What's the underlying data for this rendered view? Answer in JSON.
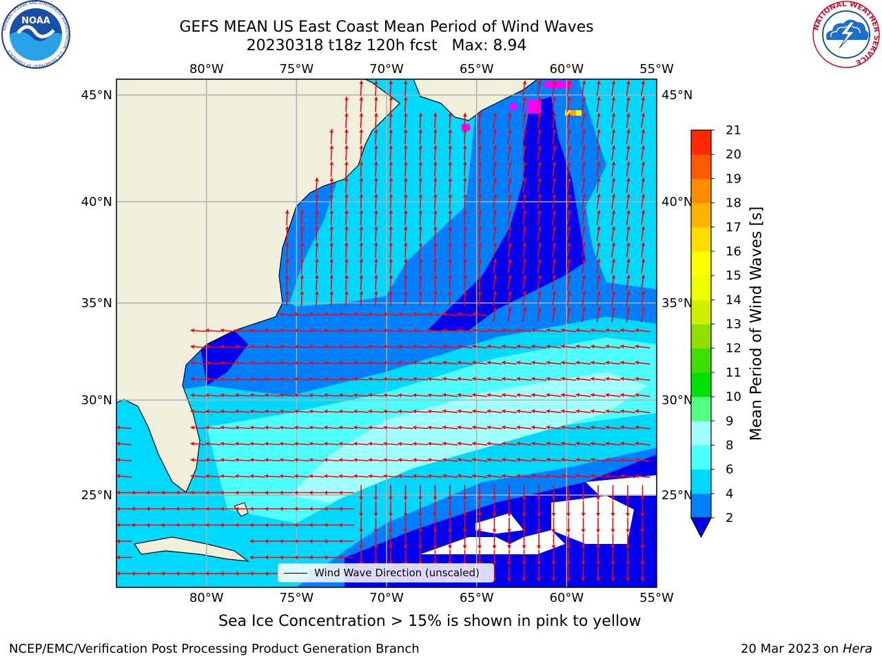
{
  "header": {
    "title_line1": "GEFS MEAN US East Coast Mean Period of Wind Waves",
    "title_line2": "20230318 t18z 120h fcst   Max: 8.94"
  },
  "logos": {
    "left": {
      "icon": "noaa-logo-icon",
      "text": "NOAA",
      "ring_text": "NATIONAL OCEANIC AND ATMOSPHERIC ADMINISTRATION · U.S. DEPARTMENT OF COMMERCE"
    },
    "right": {
      "icon": "nws-logo-icon",
      "ring_text": "NATIONAL WEATHER SERVICE"
    }
  },
  "map": {
    "lon_labels": [
      "80°W",
      "75°W",
      "70°W",
      "65°W",
      "60°W",
      "55°W"
    ],
    "lat_labels": [
      "45°N",
      "40°N",
      "35°N",
      "30°N",
      "25°N"
    ],
    "lon_values": [
      -80,
      -75,
      -70,
      -65,
      -60,
      -55
    ],
    "lat_values": [
      45,
      40,
      35,
      30,
      25
    ],
    "extent": {
      "lon_min": -85,
      "lon_max": -55,
      "lat_min": 20.5,
      "lat_max": 45.8
    },
    "land_color": "#efefdc",
    "arrow_color": "#ff0000",
    "ice_colors": [
      "#ff00ff",
      "#ffff00",
      "#ffa500"
    ]
  },
  "legend": {
    "label": "Wind Wave Direction (unscaled)"
  },
  "colorbar": {
    "label": "Mean Period of Wind Waves [s]",
    "ticks": [
      "2",
      "4",
      "6",
      "8",
      "9",
      "10",
      "11",
      "12",
      "13",
      "14",
      "15",
      "16",
      "17",
      "18",
      "19",
      "20",
      "21"
    ],
    "colors": [
      "#0080ff",
      "#00d9ff",
      "#4dffff",
      "#a0ffff",
      "#55ff80",
      "#00e000",
      "#40dd00",
      "#90dd00",
      "#cfee00",
      "#eeff00",
      "#ffff00",
      "#ffdd00",
      "#ffb300",
      "#ff8c00",
      "#ff5a00",
      "#ff2a00"
    ],
    "under_color": "#0000ee"
  },
  "subtitle": "Sea Ice Concentration > 15% is shown in pink to yellow",
  "footer": {
    "left": "NCEP/EMC/Verification Post Processing Product Generation Branch",
    "right_prefix": "20 Mar 2023 on ",
    "right_machine": "Hera"
  }
}
